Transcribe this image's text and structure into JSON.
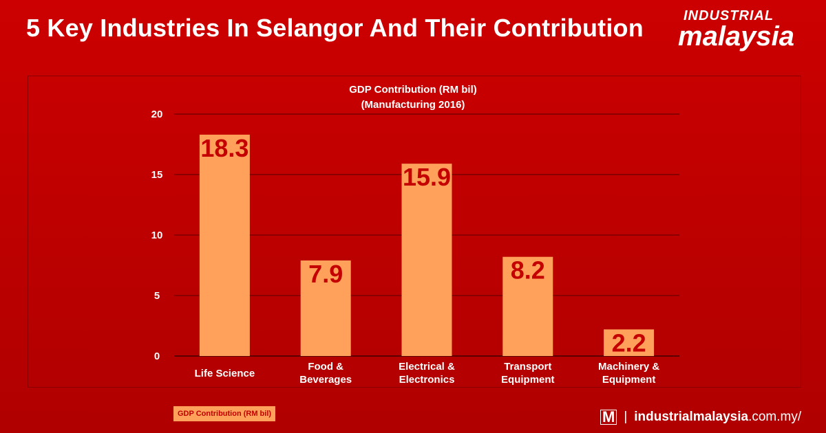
{
  "header": {
    "title": "5 Key Industries In Selangor And Their Contribution"
  },
  "logo": {
    "line1": "INDUSTRIAL",
    "line2": "malaysia"
  },
  "footer": {
    "logo_mark": "M",
    "separator": "|",
    "url_bold": "industrialmalaysia",
    "url_rest": ".com.my/"
  },
  "colors": {
    "background": "#c40000",
    "bar": "#ffa15a",
    "data_label": "#c40000",
    "grid": "#8a0000"
  },
  "chart_data": {
    "type": "bar",
    "title": "GDP Contribution (RM bil)",
    "subtitle": "(Manufacturing 2016)",
    "categories": [
      [
        "Life Science"
      ],
      [
        "Food &",
        "Beverages"
      ],
      [
        "Electrical &",
        "Electronics"
      ],
      [
        "Transport",
        "Equipment"
      ],
      [
        "Machinery &",
        "Equipment"
      ]
    ],
    "series": [
      {
        "name": "GDP Contribution (RM bil)",
        "values": [
          18.3,
          7.9,
          15.9,
          8.2,
          2.2
        ]
      }
    ],
    "ylim": [
      0,
      20
    ],
    "yticks": [
      0,
      5,
      10,
      15,
      20
    ],
    "grid": true,
    "legend": "bottom-left"
  }
}
